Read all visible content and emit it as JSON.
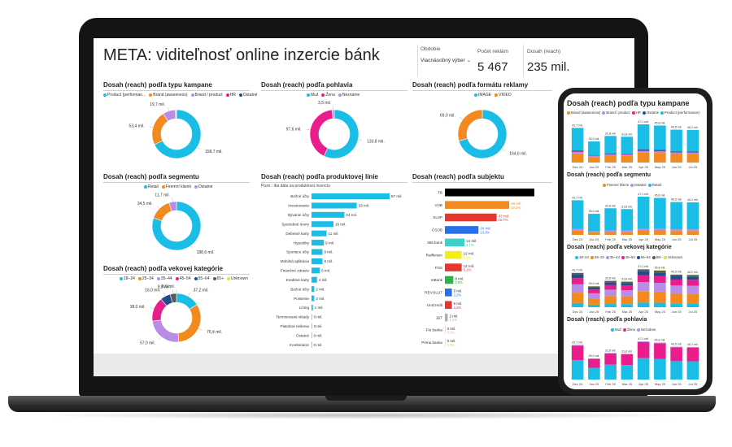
{
  "colors": {
    "cyan": "#19bde5",
    "orange": "#f28a1f",
    "purple": "#b98ce8",
    "magenta": "#e91e8c",
    "darkblue": "#1f4e8c",
    "green": "#2fb14a",
    "lime": "#d7e43a",
    "gray": "#5a5a5a",
    "black": "#000000",
    "red": "#e8362d",
    "blue": "#2870e8",
    "teal": "#3fd0c9",
    "yellow": "#f5ec1a",
    "silver": "#b0b0b0",
    "pink": "#f0a8d8",
    "darkgray": "#404040",
    "lightgreen": "#62d24c"
  },
  "header": {
    "title": "META: viditeľnosť online inzercie bánk",
    "filter_label": "Obdobie",
    "filter_value": "Viacnásobný výber",
    "kpi1_label": "Počet reklám",
    "kpi1_value": "5 467",
    "kpi2_label": "Dosah (reach)",
    "kpi2_value": "235 mil."
  },
  "chart_data": [
    {
      "id": "campaign",
      "type": "pie",
      "title": "Dosah (reach) podľa typu kampane",
      "legend": [
        "Product (performan...",
        "Brand (awareness)",
        "Brand / product",
        "HR",
        "Ostatné"
      ],
      "values": [
        158.7,
        53.4,
        19.7,
        1.2,
        0.6
      ],
      "labels": [
        "158,7 mil.",
        "53,4 mil.",
        "19,7 mil.",
        "",
        ""
      ]
    },
    {
      "id": "gender",
      "type": "pie",
      "title": "Dosah (reach) podľa pohlavia",
      "legend": [
        "Muž",
        "Žena",
        "Neznáme"
      ],
      "values": [
        133.8,
        97.6,
        3.5
      ],
      "labels": [
        "133,8 mil.",
        "97,6 mil.",
        "3,5 mil."
      ]
    },
    {
      "id": "format",
      "type": "pie",
      "title": "Dosah (reach) podľa formátu reklamy",
      "legend": [
        "IMAGE",
        "VIDEO"
      ],
      "values": [
        164.6,
        69.0
      ],
      "labels": [
        "164,6 mil.",
        "69,0 mil."
      ]
    },
    {
      "id": "segment",
      "type": "pie",
      "title": "Dosah (reach) podľa segmentu",
      "legend": [
        "Retail",
        "Firemní klienti",
        "Ostatné"
      ],
      "values": [
        188.6,
        34.5,
        11.7
      ],
      "labels": [
        "188,6 mil.",
        "34,5 mil.",
        "11,7 mil."
      ]
    },
    {
      "id": "age",
      "type": "pie",
      "title": "Dosah (reach) podľa vekovej kategórie",
      "legend": [
        "18–24",
        "25–34",
        "35–44",
        "45–54",
        "55–64",
        "65+",
        "Unknown"
      ],
      "values": [
        37.2,
        76.4,
        57.0,
        38.0,
        16.0,
        9.8,
        0.0
      ],
      "labels": [
        "37,2 mil.",
        "76,4 mil.",
        "57,0 mil.",
        "38,0 mil.",
        "16,0 mil.",
        "9,8 mil.",
        "0,0 mil."
      ]
    },
    {
      "id": "product",
      "type": "bar",
      "title": "Dosah (reach) podľa produktovej línie",
      "note": "Pozn.: iba dáta za produktovú inzerciu",
      "categories": [
        "Bežné účty",
        "Investovanie",
        "Bývanie účty",
        "Spotrebné úvery",
        "Debetné karty",
        "Hypotéky",
        "Sporiace účty",
        "Mobilná aplikácia",
        "Finančné zdravie",
        "Kreditné karty",
        "Bežné účty",
        "Poistenie",
        "Lízing",
        "Terminované vklady",
        "Platobné riešenia",
        "Ostatné",
        "Kombinácie"
      ],
      "values": [
        57,
        33,
        24,
        16,
        11,
        9,
        8,
        8,
        6,
        4,
        2,
        2,
        1,
        0,
        0,
        0,
        0
      ],
      "labels": [
        "57 mil.",
        "33 mil.",
        "24 mil.",
        "16 mil.",
        "11 mil.",
        "9 mil.",
        "8 mil.",
        "8 mil.",
        "6 mil.",
        "4 mil.",
        "2 mil.",
        "2 mil.",
        "1 mil.",
        "0 mil.",
        "0 mil.",
        "0 mil.",
        "0 mil."
      ]
    },
    {
      "id": "subject",
      "type": "bar",
      "title": "Dosah (reach) podľa subjektu",
      "categories": [
        "TB",
        "VÚB",
        "SLSP",
        "ČSOB",
        "365.bank",
        "Raiffeisen",
        "PSS",
        "mBank",
        "REVOLUT",
        "UniCredit",
        "J&T",
        "Fio banka",
        "Prima banka"
      ],
      "values": [
        64,
        46,
        37,
        24,
        14,
        12,
        12,
        6,
        5,
        5,
        2,
        0,
        0
      ],
      "labels": [
        "",
        "46 mil.",
        "37 mil.",
        "24 mil.",
        "14 mil.",
        "12 mil.",
        "12 mil.",
        "6 mil.",
        "5 mil.",
        "5 mil.",
        "2 mil.",
        "0 mil.",
        "0 mil."
      ],
      "pct": [
        "",
        "19,2%",
        "15,7%",
        "10,3%",
        "5,7%",
        "5,2%",
        "5,1%",
        "3,8%",
        "2,2%",
        "2,2%",
        "1,1%",
        "0,1%",
        "0,0%"
      ]
    },
    {
      "id": "ph_campaign",
      "type": "bar",
      "title": "Dosah (reach) podľa typu kampane",
      "legend": [
        "Brand (awareness)",
        "Brand / product",
        "HR",
        "Ostatné",
        "Product (performance)"
      ],
      "categories": [
        "Dec 24",
        "Jan 25",
        "Feb 25",
        "Mar 25",
        "Apr 25",
        "May 25",
        "Jun 25",
        "Jul 25"
      ],
      "totals": [
        42.7,
        26.0,
        32.8,
        31.8,
        47.1,
        45.6,
        40.5,
        40.2
      ],
      "labels": [
        "42,7 mil.",
        "26,0 mil.",
        "32,8 mil.",
        "31,8 mil.",
        "47,1 mil.",
        "45,6 mil.",
        "40,5 mil.",
        "40,2 mil."
      ]
    },
    {
      "id": "ph_segment",
      "type": "bar",
      "title": "Dosah (reach) podľa segmentu",
      "legend": [
        "Firemní klienti",
        "Ostatné",
        "Retail"
      ],
      "categories": [
        "Dec 24",
        "Jan 25",
        "Feb 25",
        "Mar 25",
        "Apr 25",
        "May 25",
        "Jun 25",
        "Jul 25"
      ],
      "totals": [
        42.7,
        26.0,
        32.8,
        31.8,
        47.1,
        45.6,
        40.5,
        40.2
      ],
      "labels": [
        "42,7 mil.",
        "26,0 mil.",
        "32,8 mil.",
        "31,8 mil.",
        "47,1 mil.",
        "45,6 mil.",
        "40,5 mil.",
        "40,2 mil."
      ]
    },
    {
      "id": "ph_age",
      "type": "bar",
      "title": "Dosah (reach) podľa vekovej kategórie",
      "legend": [
        "18–24",
        "25–34",
        "35–44",
        "45–54",
        "55–64",
        "65+",
        "Unknown"
      ],
      "categories": [
        "Dec 24",
        "Jan 25",
        "Feb 25",
        "Mar 25",
        "Apr 25",
        "May 25",
        "Jun 25",
        "Jul 25"
      ],
      "totals": [
        42.7,
        26.0,
        32.8,
        31.8,
        47.1,
        45.6,
        40.5,
        40.2
      ],
      "labels": [
        "42,7 mil.",
        "26,0 mil.",
        "32,8 mil.",
        "31,8 mil.",
        "47,1 mil.",
        "45,6 mil.",
        "40,5 mil.",
        "40,2 mil."
      ]
    },
    {
      "id": "ph_gender",
      "type": "bar",
      "title": "Dosah (reach) podľa pohlavia",
      "legend": [
        "Muž",
        "Žena",
        "Neznáme"
      ],
      "categories": [
        "Dec 24",
        "Jan 25",
        "Feb 25",
        "Mar 25",
        "Apr 25",
        "May 25",
        "Jun 25",
        "Jul 25"
      ],
      "totals": [
        42.7,
        26.0,
        32.8,
        31.8,
        47.1,
        45.6,
        40.5,
        40.2
      ],
      "labels": [
        "42,7 mil.",
        "26,0 mil.",
        "32,8 mil.",
        "31,8 mil.",
        "47,1 mil.",
        "45,6 mil.",
        "40,5 mil.",
        "40,2 mil."
      ]
    }
  ]
}
